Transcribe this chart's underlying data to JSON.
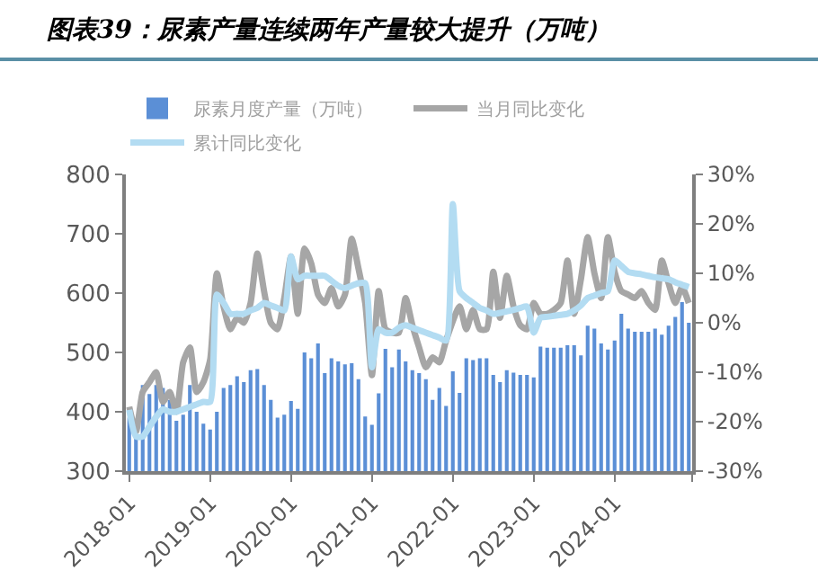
{
  "chart_data": {
    "type": "bar",
    "title": "图表39：尿素产量连续两年产量较大提升（万吨）",
    "categories": [
      "2018-01",
      null,
      null,
      null,
      null,
      null,
      null,
      null,
      null,
      null,
      null,
      null,
      "2019-01",
      null,
      null,
      null,
      null,
      null,
      null,
      null,
      null,
      null,
      null,
      null,
      "2020-01",
      null,
      null,
      null,
      null,
      null,
      null,
      null,
      null,
      null,
      null,
      null,
      "2021-01",
      null,
      null,
      null,
      null,
      null,
      null,
      null,
      null,
      null,
      null,
      null,
      "2022-01",
      null,
      null,
      null,
      null,
      null,
      null,
      null,
      null,
      null,
      null,
      null,
      "2023-01",
      null,
      null,
      null,
      null,
      null,
      null,
      null,
      null,
      null,
      null,
      null,
      "2024-01",
      null,
      null,
      null,
      null,
      null,
      null,
      null,
      null,
      null,
      null,
      null
    ],
    "series": [
      {
        "name": "尿素月度产量（万吨）",
        "color": "#5b8fd6",
        "values": [
          390,
          360,
          445,
          430,
          445,
          440,
          420,
          385,
          395,
          445,
          400,
          380,
          370,
          400,
          440,
          445,
          460,
          450,
          470,
          472,
          445,
          420,
          390,
          395,
          418,
          405,
          500,
          490,
          515,
          465,
          490,
          485,
          480,
          482,
          455,
          392,
          378,
          431,
          506,
          475,
          505,
          485,
          470,
          465,
          455,
          420,
          440,
          410,
          468,
          432,
          490,
          487,
          490,
          490,
          462,
          450,
          470,
          466,
          462,
          462,
          458,
          510,
          508,
          508,
          508,
          512,
          512,
          495,
          545,
          540,
          515,
          505,
          520,
          565,
          540,
          535,
          535,
          535,
          540,
          530,
          545,
          560,
          585,
          550
        ]
      },
      {
        "name": "当月同比变化",
        "type": "line",
        "axis": "y2",
        "color": "#a6a6a6",
        "values": [
          -17,
          -22,
          -14,
          -12,
          -10,
          -16,
          -14,
          -18,
          -8,
          -5,
          -14,
          -12,
          -7.5,
          10,
          3.3,
          -1.3,
          1,
          0,
          4,
          14,
          6.4,
          0,
          -1.3,
          5,
          13.4,
          1.8,
          15,
          12,
          5.7,
          4,
          7,
          3.3,
          5.7,
          17,
          11,
          4,
          -10.6,
          6.4,
          -1.3,
          -2,
          -2,
          5,
          -0.5,
          -5,
          -9,
          -7,
          -8,
          -3.6,
          null,
          3.3,
          -1.3,
          2.6,
          -1.3,
          -1.3,
          10.3,
          1,
          9.5,
          3.3,
          -0.5,
          -1.3,
          4,
          1.8,
          1.8,
          2.6,
          4,
          12.6,
          1.8,
          8.8,
          17.3,
          10,
          5,
          17.3,
          10.3,
          6.4,
          5.7,
          5,
          6.4,
          4,
          2.6,
          12.6,
          8,
          4,
          7.2,
          4
        ]
      },
      {
        "name": "累计同比变化",
        "type": "line",
        "axis": "y2",
        "color": "#b3dcf2",
        "values": [
          -17.6,
          -23,
          -23,
          -21,
          -19,
          -17.5,
          -18,
          -18,
          -17.5,
          -17,
          -16.5,
          -16,
          -16,
          5.7,
          4,
          1.8,
          1.8,
          1.8,
          2.5,
          3,
          4,
          3.5,
          3,
          2.5,
          13.4,
          8.8,
          9.5,
          9.5,
          9.5,
          9.5,
          8.5,
          7.5,
          7,
          7.5,
          8,
          8,
          -9,
          -1.3,
          -2,
          -2,
          -1,
          -0.5,
          -1,
          -1.5,
          -2,
          -2.5,
          -3,
          -3.6,
          24,
          6.4,
          5,
          4,
          3,
          2.5,
          1.8,
          2,
          2.3,
          2.6,
          3,
          3.3,
          -2,
          1,
          1.2,
          1.4,
          1.6,
          1.8,
          2.5,
          3.5,
          5,
          5.5,
          6,
          6.4,
          12.6,
          11.5,
          10.3,
          10,
          9.8,
          9.5,
          9.2,
          9,
          8.8,
          8.2,
          7.7,
          7.2
        ]
      }
    ],
    "ylim": [
      300,
      800
    ],
    "yticks": [
      300,
      400,
      500,
      600,
      700,
      800
    ],
    "y2lim": [
      -30,
      30
    ],
    "y2ticks": [
      {
        "value": -30,
        "label": "-30%"
      },
      {
        "value": -20,
        "label": "-20%"
      },
      {
        "value": -10,
        "label": "-10%"
      },
      {
        "value": 0,
        "label": "0%"
      },
      {
        "value": 10,
        "label": "10%"
      },
      {
        "value": 20,
        "label": "20%"
      },
      {
        "value": 30,
        "label": "30%"
      }
    ],
    "grid": false,
    "legend": "top",
    "marker": "none",
    "line_style": "solid"
  }
}
